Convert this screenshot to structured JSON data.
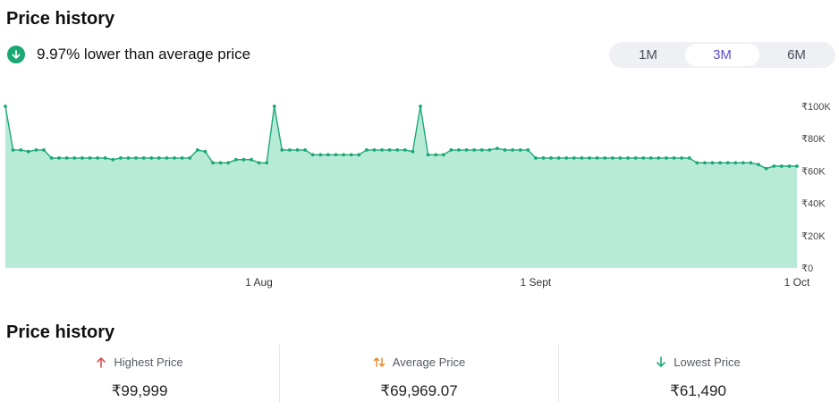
{
  "header": {
    "title": "Price history"
  },
  "summary": {
    "text": "9.97% lower than average price",
    "icon": "arrow-down-circle-icon",
    "icon_color": "#1aa874"
  },
  "range_toggle": {
    "options": [
      "1M",
      "3M",
      "6M"
    ],
    "selected": "3M"
  },
  "chart_data": {
    "type": "area",
    "color": "#1aa874",
    "fill": "#b8ead8",
    "ylim": [
      0,
      100000
    ],
    "y_ticks": [
      {
        "value": 100000,
        "label": "₹100K"
      },
      {
        "value": 80000,
        "label": "₹80K"
      },
      {
        "value": 60000,
        "label": "₹60K"
      },
      {
        "value": 40000,
        "label": "₹40K"
      },
      {
        "value": 20000,
        "label": "₹20K"
      },
      {
        "value": 0,
        "label": "₹0"
      }
    ],
    "x_ticks": [
      {
        "index": 33,
        "label": "1 Aug"
      },
      {
        "index": 69,
        "label": "1 Sept"
      },
      {
        "index": 103,
        "label": "1 Oct"
      }
    ],
    "values": [
      99999,
      73000,
      73000,
      72000,
      73000,
      73000,
      68000,
      68000,
      68000,
      68000,
      68000,
      68000,
      68000,
      68000,
      67000,
      68000,
      68000,
      68000,
      68000,
      68000,
      68000,
      68000,
      68000,
      68000,
      68000,
      73000,
      72000,
      65000,
      65000,
      65000,
      67000,
      67000,
      67000,
      65000,
      65000,
      99999,
      73000,
      73000,
      73000,
      73000,
      70000,
      70000,
      70000,
      70000,
      70000,
      70000,
      70000,
      73000,
      73000,
      73000,
      73000,
      73000,
      73000,
      72000,
      99999,
      70000,
      70000,
      70000,
      73000,
      73000,
      73000,
      73000,
      73000,
      73000,
      74000,
      73000,
      73000,
      73000,
      73000,
      68000,
      68000,
      68000,
      68000,
      68000,
      68000,
      68000,
      68000,
      68000,
      68000,
      68000,
      68000,
      68000,
      68000,
      68000,
      68000,
      68000,
      68000,
      68000,
      68000,
      68000,
      65000,
      65000,
      65000,
      65000,
      65000,
      65000,
      65000,
      65000,
      64000,
      61490,
      63000,
      63000,
      63000,
      63000
    ]
  },
  "section_title": "Price history",
  "stats": [
    {
      "label": "Highest Price",
      "value": "₹99,999",
      "icon": "arrow-up-icon",
      "icon_color": "#d9534f"
    },
    {
      "label": "Average Price",
      "value": "₹69,969.07",
      "icon": "swap-vertical-icon",
      "icon_color": "#e8892e"
    },
    {
      "label": "Lowest Price",
      "value": "₹61,490",
      "icon": "arrow-down-icon",
      "icon_color": "#1aa874"
    }
  ]
}
